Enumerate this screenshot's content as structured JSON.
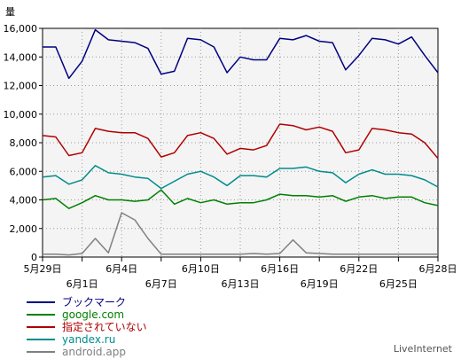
{
  "chart_data": {
    "type": "line",
    "ylabel": "量",
    "ylim": [
      0,
      16000
    ],
    "yticks": [
      0,
      2000,
      4000,
      6000,
      8000,
      10000,
      12000,
      14000,
      16000
    ],
    "ytick_labels": [
      "0",
      "2,000",
      "4,000",
      "6,000",
      "8,000",
      "10,000",
      "12,000",
      "14,000",
      "16,000"
    ],
    "xlim": [
      0,
      30
    ],
    "x_tick_labels_upper": [
      {
        "x": 0,
        "label": "5月29日"
      },
      {
        "x": 6,
        "label": "6月4日"
      },
      {
        "x": 12,
        "label": "6月10日"
      },
      {
        "x": 18,
        "label": "6月16日"
      },
      {
        "x": 24,
        "label": "6月22日"
      },
      {
        "x": 30,
        "label": "6月28日"
      }
    ],
    "x_tick_labels_lower": [
      {
        "x": 3,
        "label": "6月1日"
      },
      {
        "x": 9,
        "label": "6月7日"
      },
      {
        "x": 15,
        "label": "6月13日"
      },
      {
        "x": 21,
        "label": "6月19日"
      },
      {
        "x": 27,
        "label": "6月25日"
      }
    ],
    "grid": true,
    "legend_position": "bottom-left",
    "series": [
      {
        "name": "ブックマーク",
        "color": "#000080",
        "values": [
          14700,
          14700,
          12500,
          13700,
          15900,
          15200,
          15100,
          15000,
          14600,
          12800,
          13000,
          15300,
          15200,
          14700,
          12900,
          14000,
          13800,
          13800,
          15300,
          15200,
          15500,
          15100,
          15000,
          13100,
          14100,
          15300,
          15200,
          14900,
          15400,
          14100,
          12900
        ]
      },
      {
        "name": "google.com",
        "color": "#008000",
        "values": [
          4000,
          4100,
          3400,
          3800,
          4300,
          4000,
          4000,
          3900,
          4000,
          4700,
          3700,
          4100,
          3800,
          4000,
          3700,
          3800,
          3800,
          4000,
          4400,
          4300,
          4300,
          4200,
          4300,
          3900,
          4200,
          4300,
          4100,
          4200,
          4200,
          3800,
          3600
        ]
      },
      {
        "name": "指定されていない",
        "color": "#b00000",
        "values": [
          8500,
          8400,
          7100,
          7300,
          9000,
          8800,
          8700,
          8700,
          8300,
          7000,
          7300,
          8500,
          8700,
          8300,
          7200,
          7600,
          7500,
          7800,
          9300,
          9200,
          8900,
          9100,
          8800,
          7300,
          7500,
          9000,
          8900,
          8700,
          8600,
          8000,
          6900
        ]
      },
      {
        "name": "yandex.ru",
        "color": "#008b8b",
        "values": [
          5600,
          5700,
          5100,
          5400,
          6400,
          5900,
          5800,
          5600,
          5500,
          4800,
          5300,
          5800,
          6000,
          5600,
          5000,
          5700,
          5700,
          5600,
          6200,
          6200,
          6300,
          6000,
          5900,
          5200,
          5800,
          6100,
          5800,
          5800,
          5700,
          5400,
          4900
        ]
      },
      {
        "name": "android.app",
        "color": "#808080",
        "values": [
          200,
          200,
          150,
          250,
          1300,
          300,
          3100,
          2600,
          1300,
          200,
          200,
          200,
          200,
          200,
          200,
          200,
          250,
          200,
          250,
          1200,
          300,
          250,
          200,
          200,
          200,
          200,
          200,
          200,
          200,
          200,
          200
        ]
      }
    ]
  },
  "credit": "LiveInternet"
}
